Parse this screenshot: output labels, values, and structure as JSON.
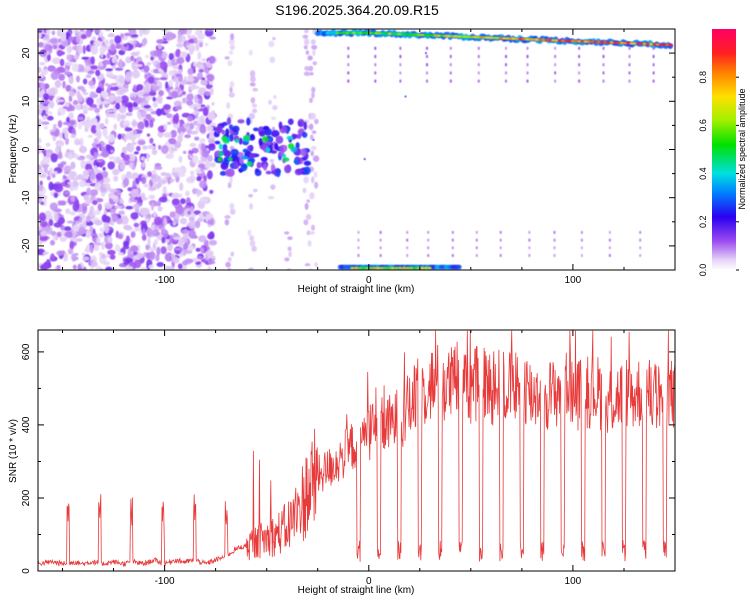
{
  "chart_data": [
    {
      "type": "heatmap",
      "title": "S196.2025.364.20.09.R15",
      "xlabel": "Height of straight line (km)",
      "ylabel": "Frequency (Hz)",
      "xlim": [
        -162,
        150
      ],
      "ylim": [
        -25,
        25
      ],
      "xticks": [
        -100,
        0,
        100
      ],
      "yticks": [
        -20,
        -10,
        0,
        10,
        20
      ],
      "colorbar": {
        "label": "Normalized spectral amplitude",
        "range": [
          0,
          1
        ],
        "ticks": [
          0.0,
          0.2,
          0.4,
          0.6,
          0.8
        ]
      },
      "features": [
        {
          "name": "noise",
          "x": [
            -162,
            -75
          ],
          "y": [
            -25,
            25
          ],
          "amplitude": 0.08
        },
        {
          "name": "cluster",
          "x": [
            -75,
            -30
          ],
          "y": [
            -5,
            5
          ],
          "amplitude": 0.4
        },
        {
          "name": "upper-band",
          "x": [
            -25,
            148
          ],
          "y": [
            20,
            24
          ],
          "amplitude": 0.9
        },
        {
          "name": "lower-band",
          "x": [
            -12,
            40
          ],
          "y": [
            -25,
            -23
          ],
          "amplitude": 0.5
        }
      ]
    },
    {
      "type": "line",
      "title": "",
      "xlabel": "Height of straight line (km)",
      "ylabel": "SNR (10 * v/v)",
      "xlim": [
        -162,
        150
      ],
      "ylim": [
        0,
        660
      ],
      "xticks": [
        -100,
        0,
        100
      ],
      "yticks": [
        0,
        200,
        400,
        600
      ],
      "series": [
        {
          "name": "SNR",
          "color": "#e83a3a",
          "x": [
            -162,
            -155,
            -150,
            -145,
            -140,
            -135,
            -130,
            -125,
            -120,
            -115,
            -110,
            -105,
            -100,
            -95,
            -90,
            -85,
            -80,
            -75,
            -70,
            -65,
            -60,
            -55,
            -50,
            -45,
            -40,
            -35,
            -30,
            -25,
            -20,
            -15,
            -10,
            -5,
            0,
            5,
            10,
            15,
            20,
            25,
            30,
            35,
            40,
            45,
            50,
            55,
            60,
            65,
            70,
            75,
            80,
            85,
            90,
            95,
            100,
            105,
            110,
            115,
            120,
            125,
            130,
            135,
            140,
            145,
            150
          ],
          "values": [
            20,
            25,
            20,
            25,
            20,
            25,
            20,
            25,
            20,
            25,
            20,
            30,
            20,
            30,
            25,
            30,
            20,
            30,
            40,
            60,
            70,
            80,
            90,
            100,
            120,
            160,
            220,
            260,
            280,
            300,
            330,
            360,
            380,
            390,
            400,
            420,
            450,
            490,
            510,
            520,
            510,
            530,
            500,
            520,
            500,
            510,
            500,
            520,
            480,
            500,
            480,
            510,
            490,
            480,
            500,
            480,
            470,
            490,
            480,
            500,
            470,
            490,
            480
          ]
        }
      ]
    }
  ]
}
